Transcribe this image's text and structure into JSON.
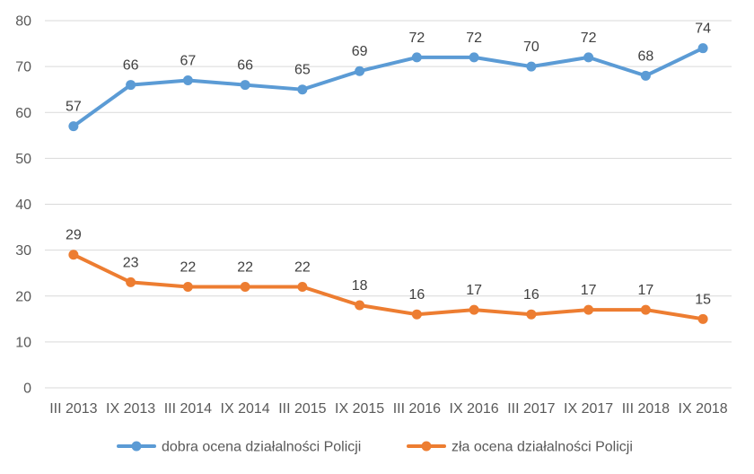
{
  "chart_data": {
    "type": "line",
    "title": "",
    "xlabel": "",
    "ylabel": "",
    "ylim": [
      0,
      80
    ],
    "yticks": [
      0,
      10,
      20,
      30,
      40,
      50,
      60,
      70,
      80
    ],
    "grid": true,
    "legend_position": "bottom",
    "categories": [
      "III 2013",
      "IX 2013",
      "III 2014",
      "IX 2014",
      "III 2015",
      "IX 2015",
      "III 2016",
      "IX 2016",
      "III 2017",
      "IX 2017",
      "III 2018",
      "IX 2018"
    ],
    "series": [
      {
        "name": "dobra ocena działalności Policji",
        "color": "#5B9BD5",
        "values": [
          57,
          66,
          67,
          66,
          65,
          69,
          72,
          72,
          70,
          72,
          68,
          74
        ]
      },
      {
        "name": "zła ocena działalności Policji",
        "color": "#ED7D31",
        "values": [
          29,
          23,
          22,
          22,
          22,
          18,
          16,
          17,
          16,
          17,
          17,
          15
        ]
      }
    ]
  }
}
